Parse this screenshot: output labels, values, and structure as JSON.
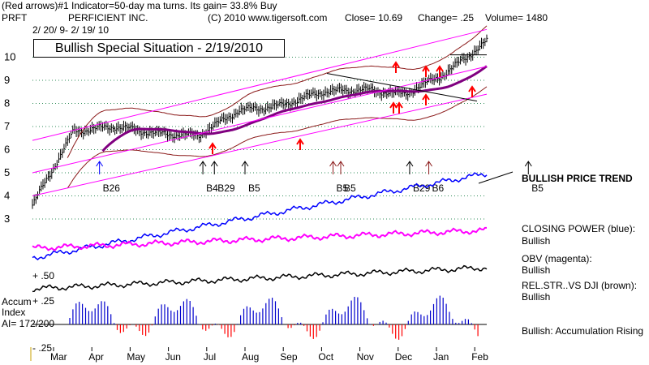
{
  "header": {
    "indicator_line": "(Red arrows)#1 Indicator=50-day ma turns.  Its gain= 33.8% Buy",
    "symbol": "PRFT",
    "company": "PERFICIENT INC.",
    "copyright": "(C) 2010 www.tigersoft.com",
    "close": "Close=   10.69",
    "change": "Change=  .25",
    "volume": "Volume= 1480",
    "date_range": "2/ 20/ 9-  2/ 19/ 10"
  },
  "title_box": "Bullish Special Situation - 2/19/2010",
  "right_labels": {
    "trend": "BULLISH PRICE TREND",
    "cp_label": "CLOSING POWER (blue):",
    "cp_value": "Bullish",
    "obv_label": "OBV (magenta):",
    "obv_value": "Bullish",
    "rs_label": "REL.STR..VS DJI (brown):",
    "rs_value": "Bullish",
    "accum_summary": "Bullish: Accumulation Rising"
  },
  "left_labels": {
    "accum": "Accum",
    "index": "Index",
    "ai": "AI= 172/200",
    "plus50": "+ .50",
    "plus25": "+ .25",
    "minus25": "- .25"
  },
  "colors": {
    "price": "#000000",
    "band": "#8b1a1a",
    "channel": "#ff00ff",
    "ma": "#800080",
    "closing_power": "#0000ff",
    "obv": "#ff00ff",
    "rel_strength": "#000000",
    "accum_bars": "#0000cc",
    "signal_arrow_red": "#ff0000",
    "signal_arrow_blue": "#0000ff"
  },
  "chart_data": {
    "type": "line",
    "title": "Bullish Special Situation - 2/19/2010",
    "x_months": [
      "Mar",
      "Apr",
      "May",
      "Jun",
      "Jul",
      "Aug",
      "Sep",
      "Oct",
      "Nov",
      "Dec",
      "Jan",
      "Feb"
    ],
    "y_ticks": [
      3,
      4,
      5,
      6,
      7,
      8,
      9,
      10
    ],
    "ylim": [
      3,
      11.2
    ],
    "price_monthly_close": [
      3.6,
      6.8,
      7.0,
      6.7,
      6.6,
      7.7,
      7.9,
      8.5,
      8.6,
      8.4,
      9.3,
      10.69
    ],
    "signals": [
      {
        "label": "B26",
        "month_index": 1.2,
        "color": "blue"
      },
      {
        "label": "B4",
        "month_index": 3.9,
        "color": "black"
      },
      {
        "label": "B29",
        "month_index": 4.2,
        "color": "black"
      },
      {
        "label": "B5",
        "month_index": 5.0,
        "color": "black"
      },
      {
        "label": "B5",
        "month_index": 7.3,
        "color": "brown"
      },
      {
        "label": "B5",
        "month_index": 7.5,
        "color": "brown"
      },
      {
        "label": "B29",
        "month_index": 9.3,
        "color": "black"
      },
      {
        "label": "B6",
        "month_index": 9.8,
        "color": "brown"
      },
      {
        "label": "B5",
        "month_index": 12.4,
        "color": "black"
      }
    ],
    "grid": true
  }
}
